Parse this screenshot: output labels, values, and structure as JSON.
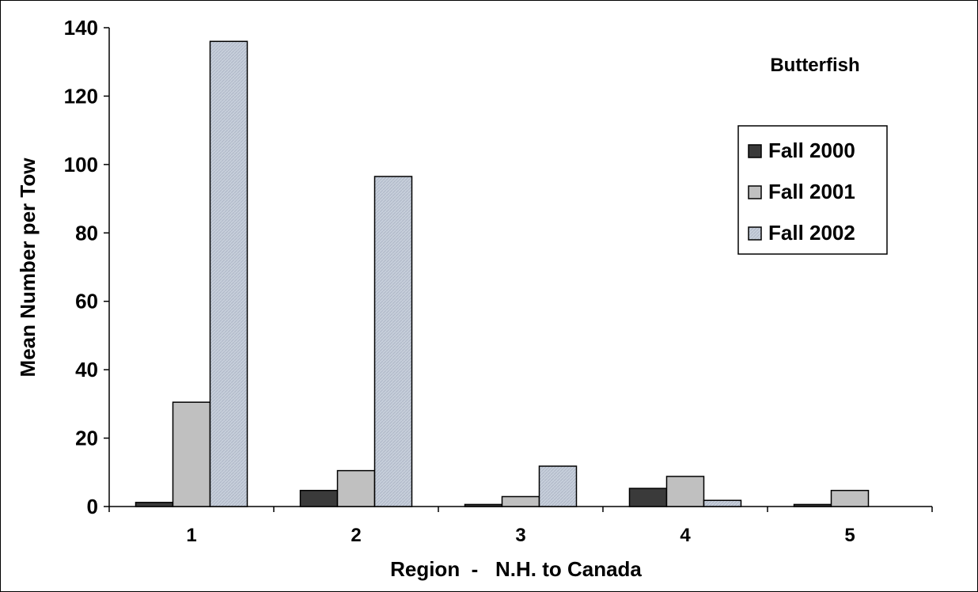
{
  "chart_data": {
    "type": "bar",
    "title": "Butterfish",
    "xlabel": "Region  -   N.H. to Canada",
    "ylabel": "Mean Number per Tow",
    "categories": [
      "1",
      "2",
      "3",
      "4",
      "5"
    ],
    "ylim": [
      0,
      140
    ],
    "yticks": [
      0,
      20,
      40,
      60,
      80,
      100,
      120,
      140
    ],
    "legend_position": "right",
    "grid": false,
    "series": [
      {
        "name": "Fall 2000",
        "values": [
          1.2,
          4.7,
          0.6,
          5.3,
          0.6
        ],
        "color": "#3a3a3a"
      },
      {
        "name": "Fall 2001",
        "values": [
          30.5,
          10.5,
          2.9,
          8.8,
          4.7
        ],
        "color": "#c0c0c0"
      },
      {
        "name": "Fall 2002",
        "values": [
          136,
          96.5,
          11.8,
          1.8,
          0
        ],
        "color": "#c4ccd8"
      }
    ]
  }
}
